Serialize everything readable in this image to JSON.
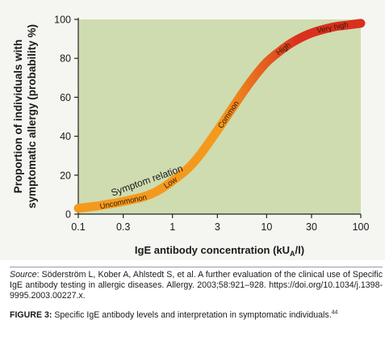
{
  "chart_data": {
    "type": "line",
    "xscale": "log",
    "x": [
      0.1,
      0.15,
      0.2,
      0.3,
      0.5,
      0.7,
      1,
      1.5,
      2,
      3,
      5,
      7,
      10,
      15,
      20,
      30,
      50,
      70,
      100
    ],
    "series": [
      {
        "values": [
          3,
          4,
          5,
          6.5,
          9,
          12,
          17,
          24,
          31,
          43,
          59,
          69,
          78,
          85,
          89,
          93,
          96,
          97,
          98
        ]
      }
    ],
    "xticks": [
      "0.1",
      "0.3",
      "1",
      "3",
      "10",
      "30",
      "100"
    ],
    "xtick_values": [
      0.1,
      0.3,
      1,
      3,
      10,
      30,
      100
    ],
    "yticks": [
      "0",
      "20",
      "40",
      "60",
      "80",
      "100"
    ],
    "ylim": [
      0,
      100
    ],
    "xlim": [
      0.1,
      100
    ],
    "xlabel_pre": "IgE antibody concentration (kU",
    "xlabel_sub": "A",
    "xlabel_post": "/l)",
    "ylabel_line1": "Proportion of individuals with",
    "ylabel_line2": "symptomatic allergy (probability %)",
    "annotations": {
      "symptom_relation": "Symptom relation",
      "bands": [
        "Uncommonon",
        "Low",
        "Common",
        "High",
        "Very high"
      ]
    },
    "colors": {
      "plot_bg": "#cfdcb0",
      "curve_low": "#f39a1e",
      "curve_high": "#d9301f",
      "band_text": "#3a1a00"
    }
  },
  "caption": {
    "source_label": "Source",
    "source_text": ": Söderström L, Kober A, Ahlstedt S, et al. A further evaluation of the clinical use of Specific IgE antibody testing in allergic diseases. Allergy. 2003;58:921–928. https://doi.org/10.1034/j.1398-9995.2003.00227.x.",
    "figure_label": "FIGURE 3:",
    "figure_text": " Specific IgE antibody levels and interpretation in symptomatic individuals.",
    "figure_ref": "44"
  }
}
